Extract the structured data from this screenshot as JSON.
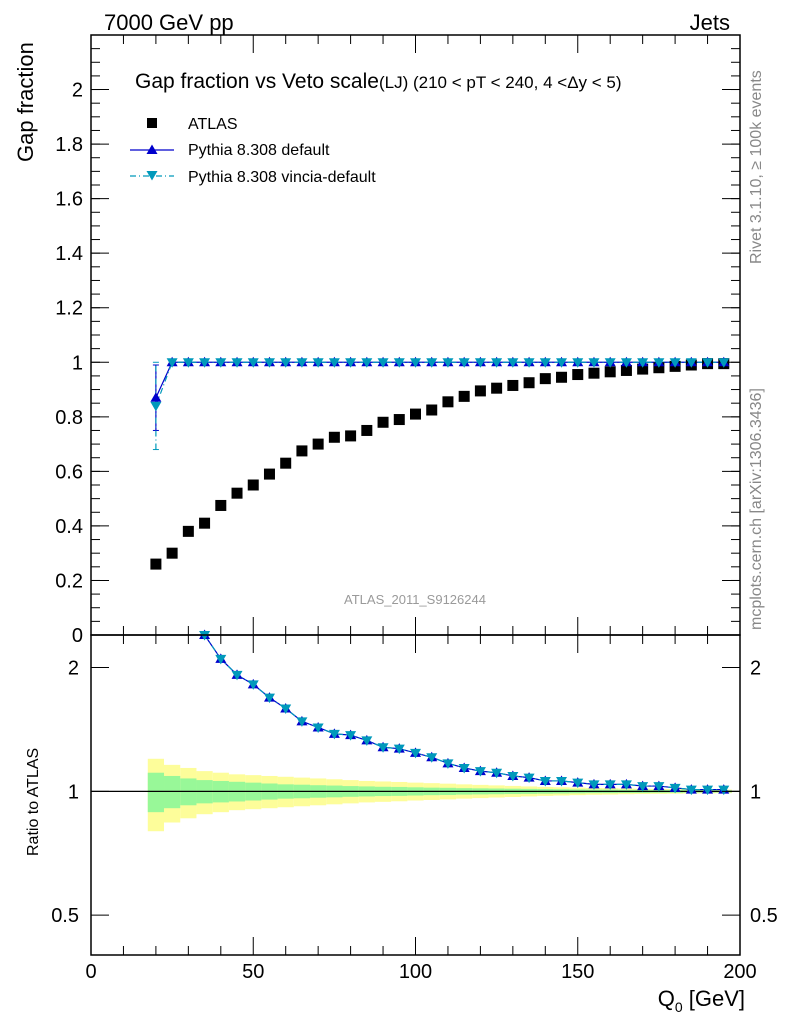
{
  "header": {
    "left": "7000 GeV pp",
    "right": "Jets"
  },
  "side_labels": {
    "rivet": "Rivet 3.1.10, ≥ 100k events",
    "mcplots": "mcplots.cern.ch [arXiv:1306.3436]"
  },
  "colors": {
    "atlas": "#000000",
    "pythia_default": "#0000cc",
    "pythia_vincia": "#0099bb",
    "band_inner": "#98f898",
    "band_outer": "#fdfd9a"
  },
  "chart_data": [
    {
      "type": "scatter",
      "title_main": "Gap fraction vs Veto scale",
      "title_sub": "(LJ) (210 < pT < 240, 4 <Δy < 5)",
      "ylabel": "Gap fraction",
      "analysis_tag": "ATLAS_2011_S9126244",
      "xlim": [
        0,
        200
      ],
      "ylim": [
        0,
        2.2
      ],
      "yticks": [
        "0",
        "0.2",
        "0.4",
        "0.6",
        "0.8",
        "1",
        "1.2",
        "1.4",
        "1.6",
        "1.8",
        "2"
      ],
      "legend_position": "top-left",
      "x": [
        20,
        25,
        30,
        35,
        40,
        45,
        50,
        55,
        60,
        65,
        70,
        75,
        80,
        85,
        90,
        95,
        100,
        105,
        110,
        115,
        120,
        125,
        130,
        135,
        140,
        145,
        150,
        155,
        160,
        165,
        170,
        175,
        180,
        185,
        190,
        195
      ],
      "series": [
        {
          "name": "ATLAS",
          "values": [
            0.26,
            0.3,
            0.38,
            0.41,
            0.475,
            0.52,
            0.55,
            0.59,
            0.63,
            0.675,
            0.7,
            0.725,
            0.73,
            0.75,
            0.78,
            0.79,
            0.81,
            0.825,
            0.855,
            0.875,
            0.895,
            0.905,
            0.915,
            0.925,
            0.94,
            0.945,
            0.955,
            0.96,
            0.965,
            0.97,
            0.975,
            0.98,
            0.985,
            0.99,
            0.995,
            0.995
          ]
        },
        {
          "name": "Pythia 8.308 default",
          "values": [
            0.87,
            1.0,
            1.0,
            1.0,
            1.0,
            1.0,
            1.0,
            1.0,
            1.0,
            1.0,
            1.0,
            1.0,
            1.0,
            1.0,
            1.0,
            1.0,
            1.0,
            1.0,
            1.0,
            1.0,
            1.0,
            1.0,
            1.0,
            1.0,
            1.0,
            1.0,
            1.0,
            1.0,
            1.0,
            1.0,
            1.0,
            1.0,
            1.0,
            1.0,
            1.0,
            1.0
          ],
          "err": [
            0.12,
            0,
            0,
            0,
            0,
            0,
            0,
            0,
            0,
            0,
            0,
            0,
            0,
            0,
            0,
            0,
            0,
            0,
            0,
            0,
            0,
            0,
            0,
            0,
            0,
            0,
            0,
            0,
            0,
            0,
            0,
            0,
            0,
            0,
            0,
            0
          ]
        },
        {
          "name": "Pythia 8.308 vincia-default",
          "values": [
            0.84,
            1.0,
            1.0,
            1.0,
            1.0,
            1.0,
            1.0,
            1.0,
            1.0,
            1.0,
            1.0,
            1.0,
            1.0,
            1.0,
            1.0,
            1.0,
            1.0,
            1.0,
            1.0,
            1.0,
            1.0,
            1.0,
            1.0,
            1.0,
            1.0,
            1.0,
            1.0,
            1.0,
            1.0,
            1.0,
            1.0,
            1.0,
            1.0,
            1.0,
            1.0,
            1.0
          ],
          "err": [
            0.16,
            0,
            0,
            0,
            0,
            0,
            0,
            0,
            0,
            0,
            0,
            0,
            0,
            0,
            0,
            0,
            0,
            0,
            0,
            0,
            0,
            0,
            0,
            0,
            0,
            0,
            0,
            0,
            0,
            0,
            0,
            0,
            0,
            0,
            0,
            0
          ]
        }
      ]
    },
    {
      "type": "line",
      "ylabel": "Ratio to ATLAS",
      "xlabel": "Q0 [GeV]",
      "xlim": [
        0,
        200
      ],
      "ylim": [
        0.4,
        2.4
      ],
      "yscale": "log",
      "xticks": [
        "0",
        "50",
        "100",
        "150",
        "200"
      ],
      "yticks": [
        "0.5",
        "1",
        "2"
      ],
      "x": [
        35,
        40,
        45,
        50,
        55,
        60,
        65,
        70,
        75,
        80,
        85,
        90,
        95,
        100,
        105,
        110,
        115,
        120,
        125,
        130,
        135,
        140,
        145,
        150,
        155,
        160,
        165,
        170,
        175,
        180,
        185,
        190,
        195
      ],
      "series": [
        {
          "name": "Pythia 8.308 default",
          "values": [
            2.43,
            2.1,
            1.92,
            1.82,
            1.69,
            1.59,
            1.48,
            1.43,
            1.38,
            1.37,
            1.33,
            1.28,
            1.27,
            1.24,
            1.21,
            1.17,
            1.14,
            1.12,
            1.11,
            1.09,
            1.08,
            1.06,
            1.06,
            1.05,
            1.04,
            1.04,
            1.04,
            1.03,
            1.03,
            1.02,
            1.01,
            1.01,
            1.01
          ]
        },
        {
          "name": "Pythia 8.308 vincia-default",
          "values": [
            2.43,
            2.1,
            1.92,
            1.82,
            1.69,
            1.59,
            1.48,
            1.43,
            1.38,
            1.37,
            1.33,
            1.28,
            1.27,
            1.24,
            1.21,
            1.17,
            1.14,
            1.12,
            1.11,
            1.09,
            1.08,
            1.06,
            1.06,
            1.05,
            1.04,
            1.04,
            1.04,
            1.03,
            1.03,
            1.02,
            1.01,
            1.01,
            1.01
          ]
        }
      ],
      "uncertainty_band": {
        "x_edges": [
          17.5,
          22.5,
          27.5,
          32.5,
          37.5,
          42.5,
          47.5,
          52.5,
          57.5,
          62.5,
          67.5,
          72.5,
          77.5,
          82.5,
          87.5,
          92.5,
          97.5,
          102.5,
          107.5,
          112.5,
          117.5,
          122.5,
          127.5,
          132.5,
          137.5,
          142.5,
          147.5,
          152.5,
          157.5,
          162.5,
          167.5,
          172.5,
          177.5,
          182.5,
          187.5,
          192.5,
          197.5
        ],
        "inner": [
          0.11,
          0.09,
          0.075,
          0.065,
          0.06,
          0.055,
          0.05,
          0.045,
          0.04,
          0.038,
          0.035,
          0.033,
          0.03,
          0.028,
          0.026,
          0.025,
          0.023,
          0.021,
          0.02,
          0.018,
          0.017,
          0.016,
          0.015,
          0.014,
          0.013,
          0.012,
          0.011,
          0.01,
          0.01,
          0.009,
          0.009,
          0.008,
          0.008,
          0.007,
          0.007,
          0.006
        ],
        "outer": [
          0.2,
          0.16,
          0.14,
          0.12,
          0.11,
          0.1,
          0.095,
          0.09,
          0.085,
          0.08,
          0.075,
          0.07,
          0.065,
          0.06,
          0.057,
          0.054,
          0.05,
          0.047,
          0.044,
          0.04,
          0.037,
          0.034,
          0.031,
          0.028,
          0.025,
          0.023,
          0.021,
          0.019,
          0.018,
          0.016,
          0.015,
          0.014,
          0.013,
          0.012,
          0.011,
          0.01
        ]
      }
    }
  ]
}
